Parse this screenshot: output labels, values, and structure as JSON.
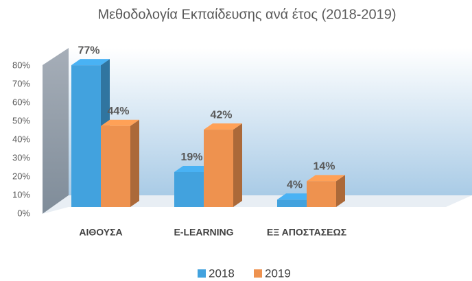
{
  "chart_data": {
    "type": "bar3d",
    "title": "Μεθοδολογία Εκπαίδευσης ανά έτος (2018-2019)",
    "categories": [
      "ΑΙΘΟΥΣΑ",
      "E-LEARNING",
      "ΕΞ ΑΠΟΣΤΑΣΕΩΣ"
    ],
    "series": [
      {
        "name": "2018",
        "color": "#42a2de",
        "values": [
          77,
          19,
          4
        ],
        "value_labels": [
          "77%",
          "19%",
          "4%"
        ]
      },
      {
        "name": "2019",
        "color": "#ee924f",
        "values": [
          44,
          42,
          14
        ],
        "value_labels": [
          "44%",
          "42%",
          "14%"
        ]
      }
    ],
    "ylim": [
      0,
      80
    ],
    "yticks": [
      {
        "value": 0,
        "label": "0%"
      },
      {
        "value": 10,
        "label": "10%"
      },
      {
        "value": 20,
        "label": "20%"
      },
      {
        "value": 30,
        "label": "30%"
      },
      {
        "value": 40,
        "label": "40%"
      },
      {
        "value": 50,
        "label": "50%"
      },
      {
        "value": 60,
        "label": "60%"
      },
      {
        "value": 70,
        "label": "70%"
      },
      {
        "value": 80,
        "label": "80%"
      }
    ],
    "grid": false,
    "legend": "bottom"
  }
}
